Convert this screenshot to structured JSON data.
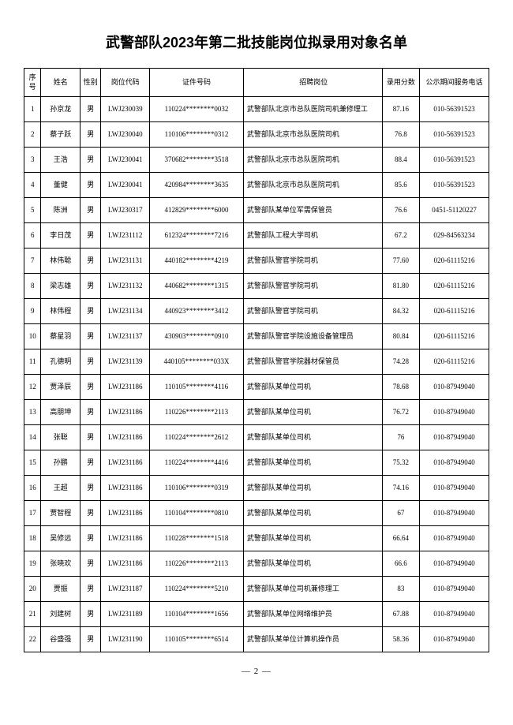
{
  "title": "武警部队2023年第二批技能岗位拟录用对象名单",
  "columns": [
    "序号",
    "姓名",
    "性别",
    "岗位代码",
    "证件号码",
    "招聘岗位",
    "录用分数",
    "公示期间服务电话"
  ],
  "rows": [
    [
      "1",
      "孙京龙",
      "男",
      "LWJ230039",
      "110224********0032",
      "武警部队北京市总队医院司机兼修理工",
      "87.16",
      "010-56391523"
    ],
    [
      "2",
      "蔡子跃",
      "男",
      "LWJ230040",
      "110106********0312",
      "武警部队北京市总队医院司机",
      "76.8",
      "010-56391523"
    ],
    [
      "3",
      "王浩",
      "男",
      "LWJ230041",
      "370682********3518",
      "武警部队北京市总队医院司机",
      "88.4",
      "010-56391523"
    ],
    [
      "4",
      "董健",
      "男",
      "LWJ230041",
      "420984********3635",
      "武警部队北京市总队医院司机",
      "85.6",
      "010-56391523"
    ],
    [
      "5",
      "陈洲",
      "男",
      "LWJ230317",
      "412829********6000",
      "武警部队某单位军需保管员",
      "76.6",
      "0451-51120227"
    ],
    [
      "6",
      "李日茂",
      "男",
      "LWJ231112",
      "612324********7216",
      "武警部队工程大学司机",
      "67.2",
      "029-84563234"
    ],
    [
      "7",
      "林伟聪",
      "男",
      "LWJ231131",
      "440182********4219",
      "武警部队警官学院司机",
      "77.60",
      "020-61115216"
    ],
    [
      "8",
      "梁志雄",
      "男",
      "LWJ231132",
      "440682********1315",
      "武警部队警官学院司机",
      "81.80",
      "020-61115216"
    ],
    [
      "9",
      "林伟程",
      "男",
      "LWJ231134",
      "440923********3412",
      "武警部队警官学院司机",
      "84.32",
      "020-61115216"
    ],
    [
      "10",
      "蔡星羽",
      "男",
      "LWJ231137",
      "430903********0910",
      "武警部队警官学院设施设备管理员",
      "80.84",
      "020-61115216"
    ],
    [
      "11",
      "孔德明",
      "男",
      "LWJ231139",
      "440105********033X",
      "武警部队警官学院器材保管员",
      "74.28",
      "020-61115216"
    ],
    [
      "12",
      "贾泽辰",
      "男",
      "LWJ231186",
      "110105********4116",
      "武警部队某单位司机",
      "78.68",
      "010-87949040"
    ],
    [
      "13",
      "高朋坤",
      "男",
      "LWJ231186",
      "110226********2113",
      "武警部队某单位司机",
      "76.72",
      "010-87949040"
    ],
    [
      "14",
      "张聪",
      "男",
      "LWJ231186",
      "110224********2612",
      "武警部队某单位司机",
      "76",
      "010-87949040"
    ],
    [
      "15",
      "孙鹏",
      "男",
      "LWJ231186",
      "110224********4416",
      "武警部队某单位司机",
      "75.32",
      "010-87949040"
    ],
    [
      "16",
      "王超",
      "男",
      "LWJ231186",
      "110106********0319",
      "武警部队某单位司机",
      "74.16",
      "010-87949040"
    ],
    [
      "17",
      "贾智程",
      "男",
      "LWJ231186",
      "110104********0810",
      "武警部队某单位司机",
      "67",
      "010-87949040"
    ],
    [
      "18",
      "吴修远",
      "男",
      "LWJ231186",
      "110228********1518",
      "武警部队某单位司机",
      "66.64",
      "010-87949040"
    ],
    [
      "19",
      "张晓欢",
      "男",
      "LWJ231186",
      "110226********2113",
      "武警部队某单位司机",
      "66.6",
      "010-87949040"
    ],
    [
      "20",
      "贾振",
      "男",
      "LWJ231187",
      "110224********5210",
      "武警部队某单位司机兼修理工",
      "83",
      "010-87949040"
    ],
    [
      "21",
      "刘建树",
      "男",
      "LWJ231189",
      "110104********1656",
      "武警部队某单位网络维护员",
      "67.88",
      "010-87949040"
    ],
    [
      "22",
      "谷盛强",
      "男",
      "LWJ231190",
      "110105********6514",
      "武警部队某单位计算机操作员",
      "58.36",
      "010-87949040"
    ]
  ],
  "pageNumber": "— 2 —"
}
